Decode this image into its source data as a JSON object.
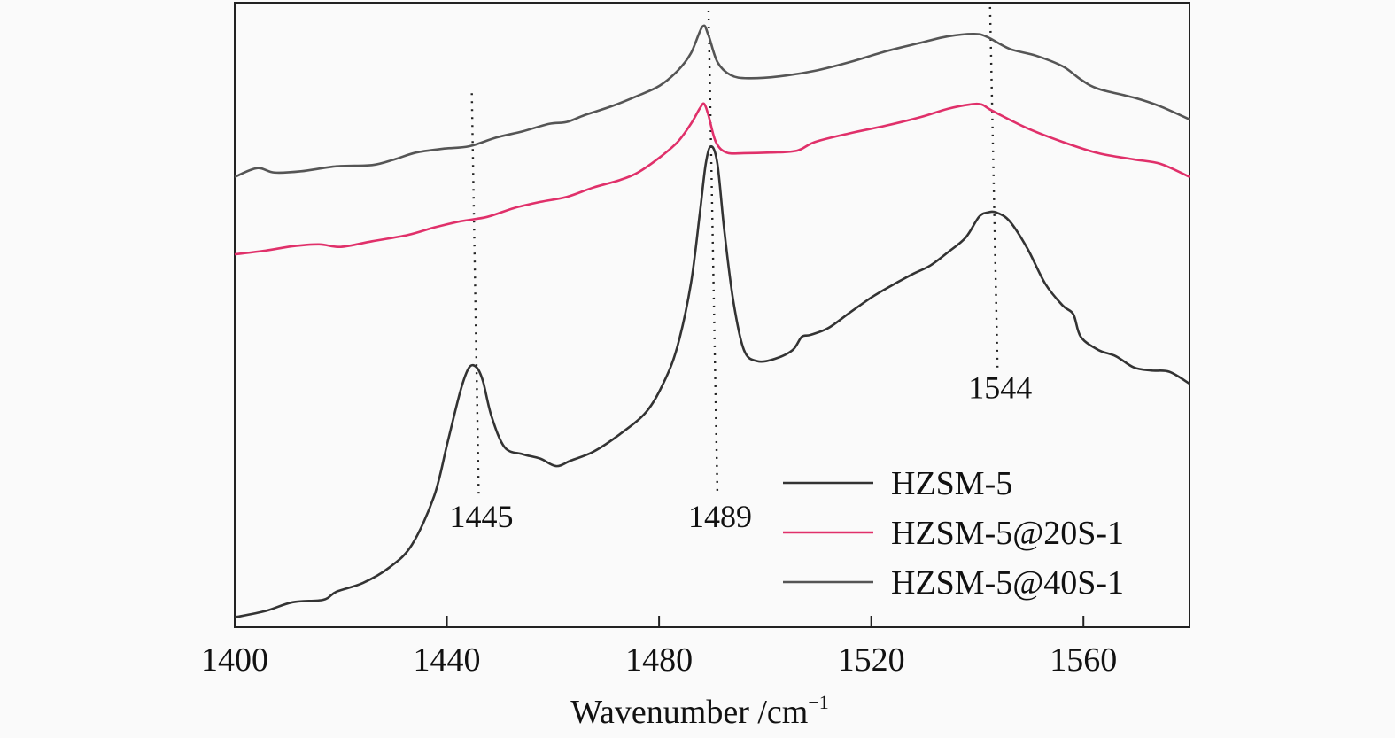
{
  "chart_data": {
    "type": "line",
    "title": "",
    "xlabel": "Wavenumber /cm",
    "xlabel_superscript": "−1",
    "ylabel": "",
    "xlim": [
      1400,
      1580
    ],
    "ylim": [
      0,
      100
    ],
    "xticks": [
      "1400",
      "1440",
      "1480",
      "1520",
      "1560"
    ],
    "xtick_values": [
      1400,
      1440,
      1480,
      1520,
      1560
    ],
    "grid": false,
    "legend_position": "bottom-right",
    "series": [
      {
        "name": "HZSM-5",
        "color": "#333333",
        "x": [
          1400,
          1405.8,
          1410.9,
          1416.7,
          1419.2,
          1424.2,
          1429.2,
          1433.4,
          1437.6,
          1440.1,
          1442.6,
          1444.2,
          1445.6,
          1446.8,
          1448.4,
          1450.9,
          1454.3,
          1457.6,
          1460.6,
          1463.4,
          1467.6,
          1472.6,
          1477.6,
          1481.0,
          1483.5,
          1486.0,
          1487.7,
          1488.8,
          1489.8,
          1491.0,
          1492.3,
          1494.0,
          1496.0,
          1498.5,
          1501.9,
          1505.2,
          1506.9,
          1508.5,
          1511.9,
          1516.0,
          1520.2,
          1523.6,
          1527.7,
          1531.1,
          1534.4,
          1537.8,
          1540.3,
          1541.9,
          1543.6,
          1546.1,
          1549.4,
          1552.8,
          1556.1,
          1558.1,
          1559.5,
          1562.8,
          1566.1,
          1569.5,
          1572.8,
          1576.2,
          1580
        ],
        "y": [
          1.6,
          2.6,
          4.0,
          4.4,
          5.7,
          7.1,
          9.6,
          13.2,
          21.0,
          29.5,
          38.0,
          41.6,
          41.6,
          39.4,
          33.8,
          28.8,
          27.7,
          27.0,
          25.8,
          26.7,
          28.1,
          30.9,
          34.5,
          39.4,
          45.1,
          55.0,
          66.4,
          74.2,
          77.0,
          74.2,
          63.5,
          52.2,
          44.4,
          42.6,
          43.0,
          44.4,
          46.5,
          46.8,
          47.9,
          50.4,
          52.9,
          54.6,
          56.5,
          57.9,
          60.0,
          62.4,
          65.7,
          66.4,
          66.4,
          65.0,
          60.7,
          55.0,
          51.5,
          50.1,
          46.5,
          44.4,
          43.4,
          41.6,
          41.1,
          40.9,
          39.0
        ]
      },
      {
        "name": "HZSM-5@20S-1",
        "color": "#e0306a",
        "x": [
          1400,
          1405.8,
          1410.9,
          1415.9,
          1420.0,
          1425.9,
          1432.6,
          1437.6,
          1442.6,
          1447.6,
          1452.6,
          1457.6,
          1462.6,
          1467.6,
          1472.6,
          1476.0,
          1480.1,
          1483.5,
          1486.0,
          1487.7,
          1488.5,
          1489.3,
          1490.7,
          1492.7,
          1496.0,
          1501.0,
          1506.0,
          1509.4,
          1516.0,
          1522.7,
          1529.4,
          1534.4,
          1538.6,
          1540.8,
          1542.8,
          1549.4,
          1556.1,
          1562.8,
          1569.5,
          1574.5,
          1580
        ],
        "y": [
          59.7,
          60.3,
          61.0,
          61.3,
          60.9,
          61.8,
          62.8,
          64.0,
          65.0,
          65.7,
          67.1,
          68.1,
          68.9,
          70.4,
          71.6,
          72.8,
          75.2,
          77.7,
          80.6,
          83.1,
          83.8,
          82.0,
          77.7,
          76.0,
          75.9,
          76.0,
          76.3,
          77.7,
          79.1,
          80.3,
          81.7,
          83.0,
          83.7,
          83.7,
          82.7,
          79.9,
          77.7,
          75.9,
          74.9,
          74.2,
          72.1
        ]
      },
      {
        "name": "HZSM-5@40S-1",
        "color": "#555555",
        "x": [
          1400,
          1404.2,
          1407.5,
          1412.5,
          1419.2,
          1425.9,
          1430.1,
          1434.2,
          1439.2,
          1444.2,
          1449.3,
          1454.3,
          1459.3,
          1462.6,
          1466.0,
          1471.0,
          1476.0,
          1480.1,
          1483.5,
          1486.0,
          1488.2,
          1489.3,
          1491.0,
          1493.5,
          1496.8,
          1502.7,
          1509.4,
          1516.0,
          1522.7,
          1529.4,
          1534.4,
          1539.4,
          1541.9,
          1546.1,
          1551.1,
          1556.1,
          1559.5,
          1562.8,
          1569.5,
          1574.5,
          1580
        ],
        "y": [
          72.1,
          73.5,
          72.8,
          73.0,
          73.8,
          74.0,
          74.9,
          76.0,
          76.6,
          77.0,
          78.4,
          79.4,
          80.6,
          80.9,
          82.0,
          83.4,
          85.1,
          86.7,
          89.1,
          91.9,
          96.2,
          94.8,
          90.5,
          88.4,
          87.9,
          88.2,
          89.1,
          90.5,
          92.2,
          93.6,
          94.6,
          95.0,
          94.5,
          92.6,
          91.5,
          89.8,
          87.7,
          86.2,
          84.8,
          83.4,
          81.3
        ]
      }
    ],
    "annotations": [
      {
        "label": "1445",
        "x": [
          1444.7,
          1446.0
        ],
        "y": [
          85.5,
          21.0
        ]
      },
      {
        "label": "1489",
        "x": [
          1489.3,
          1491.0
        ],
        "y": [
          100,
          21.0
        ]
      },
      {
        "label": "1544",
        "x": [
          1542.4,
          1543.8
        ],
        "y": [
          99.3,
          41.6
        ]
      }
    ]
  }
}
